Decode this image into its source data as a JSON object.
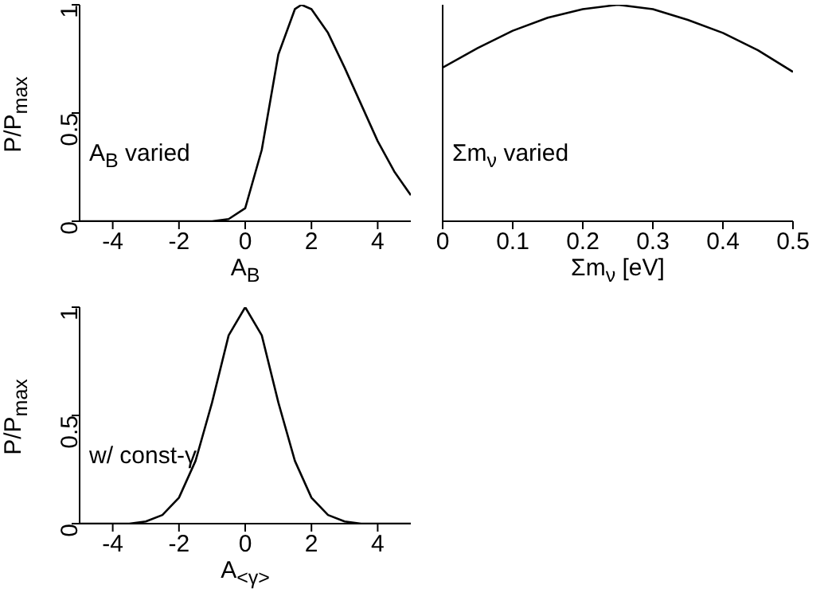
{
  "chart_data": [
    {
      "type": "line",
      "xlabel": "A$_{B}$",
      "ylabel": "P/P$_{max}$",
      "annotations": [
        "A$_{B}$ varied"
      ],
      "x": [
        -5,
        -2,
        -1,
        -0.5,
        0,
        0.5,
        1,
        1.5,
        1.7,
        2,
        2.5,
        3,
        3.5,
        4,
        4.5,
        5
      ],
      "series": [
        {
          "color": "#000000",
          "values": [
            0,
            0,
            0,
            0.01,
            0.06,
            0.33,
            0.77,
            0.98,
            1,
            0.98,
            0.87,
            0.71,
            0.54,
            0.37,
            0.23,
            0.12
          ]
        }
      ],
      "xlim": [
        -5,
        5
      ],
      "xticks": [
        -4,
        -2,
        0,
        2,
        4
      ],
      "ylim": [
        0,
        1
      ],
      "yticks": [
        0,
        0.5,
        1
      ]
    },
    {
      "type": "line",
      "xlabel": "Σm$_{ν}$ [eV]",
      "annotations": [
        "Σm$_{ν}$ varied"
      ],
      "x": [
        0,
        0.05,
        0.1,
        0.15,
        0.2,
        0.25,
        0.3,
        0.35,
        0.4,
        0.45,
        0.5
      ],
      "series": [
        {
          "color": "#000000",
          "values": [
            0.71,
            0.8,
            0.88,
            0.94,
            0.98,
            1,
            0.98,
            0.93,
            0.87,
            0.79,
            0.69
          ]
        }
      ],
      "xlim": [
        0,
        0.5
      ],
      "xticks": [
        0,
        0.1,
        0.2,
        0.3,
        0.4,
        0.5
      ],
      "ylim": [
        0,
        1
      ],
      "yticks": [
        0,
        0.5,
        1
      ],
      "tick_labels": "x"
    },
    {
      "type": "line",
      "xlabel": "A$_{<γ>}$",
      "ylabel": "P/P$_{max}$",
      "annotations": [
        "w/ const-γ"
      ],
      "x": [
        -5,
        -4,
        -3.5,
        -3,
        -2.5,
        -2,
        -1.5,
        -1,
        -0.5,
        0,
        0.5,
        1,
        1.5,
        2,
        2.5,
        3,
        3.5,
        4,
        5
      ],
      "series": [
        {
          "color": "#000000",
          "values": [
            0,
            0,
            0,
            0.01,
            0.04,
            0.12,
            0.29,
            0.56,
            0.87,
            1,
            0.87,
            0.56,
            0.29,
            0.12,
            0.04,
            0.01,
            0,
            0,
            0
          ]
        }
      ],
      "xlim": [
        -5,
        5
      ],
      "xticks": [
        -4,
        -2,
        0,
        2,
        4
      ],
      "ylim": [
        0,
        1
      ],
      "yticks": [
        0,
        0.5,
        1
      ]
    }
  ]
}
